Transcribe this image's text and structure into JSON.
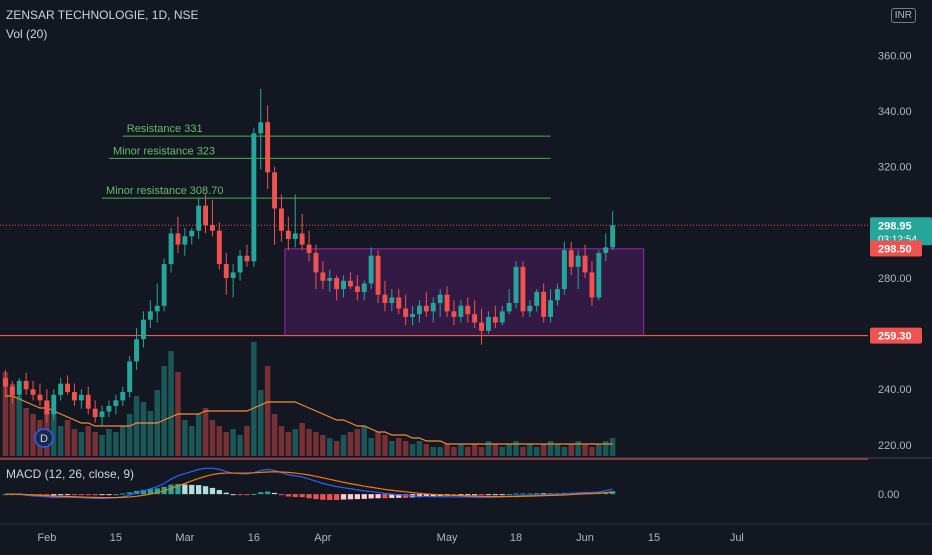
{
  "header": {
    "title": "ZENSAR TECHNOLOGIE, 1D, NSE",
    "vol_label": "Vol (20)",
    "macd_label": "MACD (12, 26, close, 9)",
    "currency": "INR"
  },
  "colors": {
    "background": "#131722",
    "up": "#26a69a",
    "down": "#ef5350",
    "annotation_green": "#4caf50",
    "annotation_text": "#66bb6a",
    "support_line": "#f05a4a",
    "box_border": "#9c27b0",
    "box_fill": "#4a1d5c",
    "vol_ma": "#f28c38",
    "macd_line": "#2962ff",
    "signal_line": "#f57c00"
  },
  "chart_data": {
    "type": "candlestick",
    "y_axis": {
      "range": [
        216,
        367
      ],
      "ticks": [
        220,
        240,
        260,
        280,
        300,
        320,
        340,
        360
      ],
      "tick_labels": [
        "220.00",
        "240.00",
        "260.00",
        "280.00",
        "300.00",
        "320.00",
        "340.00",
        "360.00"
      ]
    },
    "x_axis": {
      "tick_labels": [
        {
          "label": "Feb",
          "bar": 6
        },
        {
          "label": "15",
          "bar": 16
        },
        {
          "label": "Mar",
          "bar": 26
        },
        {
          "label": "16",
          "bar": 36
        },
        {
          "label": "Apr",
          "bar": 46
        },
        {
          "label": "May",
          "bar": 64
        },
        {
          "label": "18",
          "bar": 74
        },
        {
          "label": "Jun",
          "bar": 84
        },
        {
          "label": "15",
          "bar": 94
        },
        {
          "label": "Jul",
          "bar": 106
        }
      ]
    },
    "price_labels": [
      {
        "label": "298.95",
        "sublabel": "03:12:54",
        "value": 298.95,
        "kind": "last"
      },
      {
        "label": "298.50",
        "value": 298.5,
        "kind": "red"
      },
      {
        "label": "259.30",
        "value": 259.3,
        "kind": "red"
      }
    ],
    "annotations": [
      {
        "text": "Resistance 331",
        "value": 331,
        "from_bar": 17,
        "to_bar": 79
      },
      {
        "text": "Minor resistance 323",
        "value": 323,
        "from_bar": 15,
        "to_bar": 79
      },
      {
        "text": "Minor resistance 308.70",
        "value": 308.7,
        "from_bar": 14,
        "to_bar": 79
      }
    ],
    "support_line": {
      "value": 259.3
    },
    "last_price_line": {
      "value": 298.95
    },
    "range_box": {
      "from_bar": 41,
      "to_bar": 93,
      "low": 259.3,
      "high": 290.5
    },
    "dividend_marker": {
      "label": "D",
      "bar": 5
    },
    "candles": [
      [
        244,
        247,
        237,
        241
      ],
      [
        241,
        243,
        235,
        238
      ],
      [
        238,
        244,
        236,
        243
      ],
      [
        243,
        246,
        238,
        240
      ],
      [
        240,
        243,
        236,
        238
      ],
      [
        238,
        242,
        234,
        236
      ],
      [
        236,
        240,
        228,
        231
      ],
      [
        231,
        240,
        229,
        238
      ],
      [
        238,
        244,
        236,
        242
      ],
      [
        242,
        245,
        238,
        239
      ],
      [
        239,
        242,
        234,
        236
      ],
      [
        236,
        240,
        233,
        238
      ],
      [
        238,
        241,
        231,
        233
      ],
      [
        233,
        236,
        228,
        230
      ],
      [
        230,
        234,
        227,
        232
      ],
      [
        232,
        236,
        230,
        234
      ],
      [
        234,
        238,
        231,
        236
      ],
      [
        236,
        241,
        234,
        239
      ],
      [
        239,
        252,
        237,
        250
      ],
      [
        250,
        262,
        247,
        258
      ],
      [
        258,
        268,
        255,
        265
      ],
      [
        265,
        272,
        262,
        268
      ],
      [
        268,
        278,
        264,
        270
      ],
      [
        270,
        287,
        268,
        285
      ],
      [
        285,
        298,
        282,
        296
      ],
      [
        296,
        302,
        289,
        292
      ],
      [
        292,
        298,
        288,
        295
      ],
      [
        295,
        298,
        292,
        297
      ],
      [
        297,
        309,
        294,
        306
      ],
      [
        306,
        310,
        296,
        299
      ],
      [
        299,
        308,
        295,
        297
      ],
      [
        297,
        300,
        283,
        285
      ],
      [
        285,
        289,
        274,
        280
      ],
      [
        280,
        285,
        273,
        282
      ],
      [
        282,
        290,
        279,
        288
      ],
      [
        288,
        292,
        284,
        286
      ],
      [
        286,
        334,
        284,
        332
      ],
      [
        332,
        348,
        319,
        336
      ],
      [
        336,
        342,
        312,
        318
      ],
      [
        318,
        320,
        292,
        305
      ],
      [
        305,
        310,
        293,
        297
      ],
      [
        297,
        302,
        290,
        294
      ],
      [
        294,
        310,
        291,
        296
      ],
      [
        296,
        303,
        290,
        292
      ],
      [
        292,
        297,
        286,
        289
      ],
      [
        289,
        292,
        276,
        282
      ],
      [
        282,
        286,
        276,
        279
      ],
      [
        279,
        283,
        275,
        280
      ],
      [
        280,
        281,
        272,
        276
      ],
      [
        276,
        281,
        273,
        279
      ],
      [
        279,
        282,
        276,
        277
      ],
      [
        277,
        281,
        272,
        275
      ],
      [
        275,
        279,
        272,
        278
      ],
      [
        278,
        291,
        276,
        288
      ],
      [
        288,
        290,
        271,
        274
      ],
      [
        274,
        279,
        268,
        271
      ],
      [
        271,
        276,
        268,
        273
      ],
      [
        273,
        276,
        267,
        269
      ],
      [
        269,
        274,
        263,
        266
      ],
      [
        266,
        270,
        263,
        267
      ],
      [
        267,
        272,
        264,
        270
      ],
      [
        270,
        275,
        266,
        268
      ],
      [
        268,
        273,
        264,
        271
      ],
      [
        271,
        276,
        266,
        274
      ],
      [
        274,
        277,
        266,
        268
      ],
      [
        268,
        272,
        263,
        266
      ],
      [
        266,
        272,
        264,
        270
      ],
      [
        270,
        273,
        264,
        267
      ],
      [
        267,
        272,
        262,
        264
      ],
      [
        264,
        269,
        256,
        261
      ],
      [
        261,
        268,
        260,
        266
      ],
      [
        266,
        270,
        262,
        264
      ],
      [
        264,
        270,
        263,
        268
      ],
      [
        268,
        276,
        267,
        271
      ],
      [
        271,
        286,
        269,
        284
      ],
      [
        284,
        286,
        266,
        268
      ],
      [
        268,
        272,
        266,
        270
      ],
      [
        270,
        276,
        268,
        275
      ],
      [
        275,
        278,
        264,
        266
      ],
      [
        266,
        276,
        264,
        272
      ],
      [
        272,
        278,
        270,
        276
      ],
      [
        276,
        293,
        274,
        290
      ],
      [
        290,
        293,
        281,
        284
      ],
      [
        284,
        290,
        276,
        288
      ],
      [
        288,
        292,
        280,
        282
      ],
      [
        282,
        286,
        270,
        273
      ],
      [
        273,
        290,
        272,
        289
      ],
      [
        289,
        296,
        286,
        291
      ],
      [
        291,
        304,
        290,
        298.95
      ]
    ],
    "volume": {
      "range": [
        0,
        40
      ],
      "values": [
        28,
        24,
        20,
        16,
        14,
        12,
        18,
        15,
        10,
        12,
        9,
        8,
        10,
        8,
        7,
        9,
        8,
        10,
        14,
        20,
        18,
        15,
        22,
        30,
        35,
        28,
        12,
        10,
        14,
        16,
        12,
        10,
        8,
        9,
        7,
        10,
        38,
        22,
        30,
        14,
        10,
        8,
        9,
        11,
        9,
        8,
        7,
        6,
        5,
        7,
        8,
        9,
        10,
        6,
        8,
        7,
        5,
        6,
        5,
        4,
        5,
        4,
        3,
        3,
        4,
        3,
        4,
        3,
        4,
        3,
        5,
        4,
        3,
        4,
        5,
        3,
        4,
        3,
        4,
        5,
        4,
        3,
        4,
        5,
        4,
        3,
        4,
        5,
        6
      ],
      "ma": [
        20,
        20,
        19,
        18,
        17,
        16,
        16,
        15,
        14,
        13,
        12,
        11,
        11,
        10,
        10,
        10,
        10,
        10,
        10,
        11,
        11,
        11,
        11,
        12,
        13,
        14,
        14,
        14,
        14,
        15,
        15,
        15,
        15,
        15,
        15,
        15,
        16,
        17,
        18,
        18,
        18,
        18,
        18,
        17,
        16,
        15,
        14,
        13,
        12,
        12,
        11,
        10,
        10,
        9,
        8,
        8,
        7,
        7,
        7,
        6,
        6,
        5,
        5,
        5,
        4,
        4,
        4,
        4,
        4,
        4,
        4,
        4,
        4,
        4,
        4,
        4,
        4,
        4,
        4,
        4,
        4,
        4,
        4,
        4,
        4,
        4,
        4,
        4,
        4
      ]
    },
    "macd": {
      "range": [
        -12,
        14
      ],
      "tick_labels": [
        {
          "label": "0.00",
          "value": 0
        }
      ],
      "macd_line": [
        0,
        0,
        0,
        -0.5,
        -0.8,
        -1,
        -1.3,
        -1.5,
        -1.5,
        -1.4,
        -1.5,
        -1.6,
        -1.8,
        -2,
        -2,
        -1.8,
        -1.6,
        -1.2,
        -0.5,
        0.5,
        1.5,
        2.5,
        3.5,
        5,
        7,
        8.5,
        9.5,
        10.5,
        11.5,
        12,
        12,
        11.5,
        10.5,
        9.8,
        9.5,
        9.4,
        10,
        11,
        11.5,
        11,
        10,
        9,
        8.5,
        8,
        7,
        6,
        5,
        4.2,
        3.5,
        3,
        2.5,
        2,
        1.5,
        1.2,
        0.8,
        0.3,
        0,
        -0.3,
        -0.6,
        -0.8,
        -1,
        -1.1,
        -1.2,
        -1.2,
        -1.2,
        -1.3,
        -1.3,
        -1.3,
        -1.4,
        -1.5,
        -1.5,
        -1.4,
        -1.3,
        -1.1,
        -0.8,
        -0.7,
        -0.6,
        -0.4,
        -0.3,
        -0.2,
        -0.1,
        0.2,
        0.4,
        0.6,
        0.8,
        0.8,
        1,
        1.6,
        2.4
      ],
      "signal_line": [
        0,
        0,
        0,
        -0.2,
        -0.4,
        -0.5,
        -0.7,
        -0.9,
        -1,
        -1.1,
        -1.2,
        -1.3,
        -1.4,
        -1.5,
        -1.6,
        -1.6,
        -1.6,
        -1.5,
        -1.3,
        -1,
        -0.5,
        0,
        0.8,
        1.6,
        2.6,
        3.8,
        5,
        6.2,
        7.3,
        8.3,
        9.1,
        9.6,
        9.8,
        9.8,
        9.8,
        9.8,
        9.9,
        10.1,
        10.3,
        10.4,
        10.3,
        10.1,
        9.8,
        9.4,
        8.9,
        8.3,
        7.6,
        6.9,
        6.2,
        5.5,
        4.9,
        4.3,
        3.7,
        3.2,
        2.7,
        2.2,
        1.8,
        1.4,
        1.1,
        0.7,
        0.4,
        0.1,
        -0.1,
        -0.3,
        -0.5,
        -0.6,
        -0.7,
        -0.8,
        -0.9,
        -1,
        -1.1,
        -1.1,
        -1.1,
        -1.1,
        -1.1,
        -1,
        -0.9,
        -0.8,
        -0.7,
        -0.6,
        -0.5,
        -0.4,
        -0.2,
        0,
        0.2,
        0.3,
        0.5,
        0.7,
        1
      ]
    }
  }
}
